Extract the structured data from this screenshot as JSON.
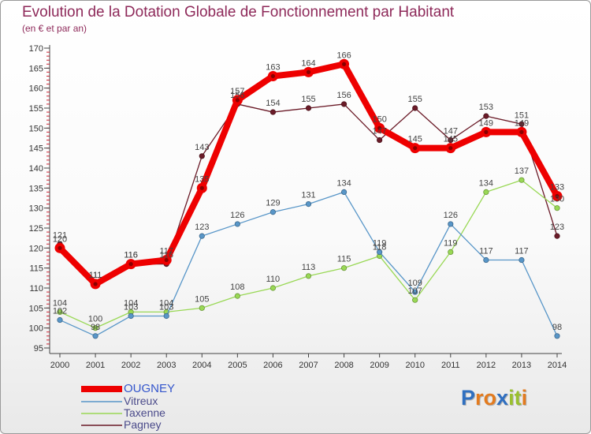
{
  "title": "Evolution de la Dotation Globale de Fonctionnement par Habitant",
  "subtitle": "(en € et par an)",
  "logo": {
    "text": "Proxiti",
    "letters": [
      {
        "ch": "P",
        "color": "#2f6fc0"
      },
      {
        "ch": "r",
        "color": "#e37b1f"
      },
      {
        "ch": "o",
        "color": "#e37b1f"
      },
      {
        "ch": "x",
        "color": "#2f6fc0"
      },
      {
        "ch": "i",
        "color": "#9ac02f"
      },
      {
        "ch": "t",
        "color": "#9ac02f"
      },
      {
        "ch": "i",
        "color": "#e37b1f"
      }
    ]
  },
  "chart_data": {
    "type": "line",
    "title": "Evolution de la Dotation Globale de Fonctionnement par Habitant",
    "subtitle": "(en € et par an)",
    "x": [
      "2000",
      "2001",
      "2002",
      "2003",
      "2004",
      "2005",
      "2006",
      "2007",
      "2008",
      "2009",
      "2010",
      "2011",
      "2012",
      "2013",
      "2014"
    ],
    "ylim": [
      95,
      170
    ],
    "yticks": [
      95,
      100,
      105,
      110,
      115,
      120,
      125,
      130,
      135,
      140,
      145,
      150,
      155,
      160,
      165,
      170
    ],
    "grid": false,
    "legend_position": "bottom-left",
    "series": [
      {
        "name": "OUGNEY",
        "color": "#ee0000",
        "values": [
          120,
          111,
          116,
          117,
          135,
          157,
          163,
          164,
          166,
          150,
          145,
          145,
          149,
          149,
          133
        ]
      },
      {
        "name": "Vitreux",
        "color": "#5896c8",
        "values": [
          102,
          98,
          103,
          103,
          123,
          126,
          129,
          131,
          134,
          119,
          109,
          126,
          117,
          117,
          98
        ]
      },
      {
        "name": "Taxenne",
        "color": "#99d855",
        "values": [
          104,
          100,
          104,
          104,
          105,
          108,
          110,
          113,
          115,
          118,
          107,
          119,
          134,
          137,
          130
        ]
      },
      {
        "name": "Pagney",
        "color": "#6b1b28",
        "values": [
          121,
          111,
          116,
          116,
          143,
          156,
          154,
          155,
          156,
          147,
          155,
          147,
          153,
          151,
          123
        ]
      }
    ]
  }
}
